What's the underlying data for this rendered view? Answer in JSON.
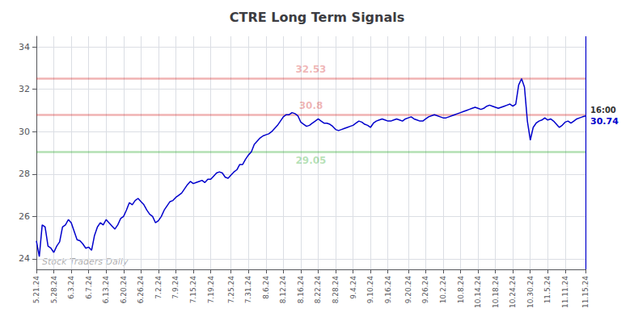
{
  "chart_data": {
    "type": "line",
    "title": "CTRE Long Term Signals",
    "color": "#0000cc",
    "grid": true,
    "ylim": [
      23.5,
      34.5
    ],
    "yticks": [
      24,
      26,
      28,
      30,
      32,
      34
    ],
    "categories": [
      "5.21.24",
      null,
      null,
      null,
      null,
      null,
      "5.28.24",
      null,
      null,
      null,
      null,
      null,
      "6.3.24",
      null,
      null,
      null,
      null,
      null,
      "6.7.24",
      null,
      null,
      null,
      null,
      null,
      "6.13.24",
      null,
      null,
      null,
      null,
      null,
      "6.20.24",
      null,
      null,
      null,
      null,
      null,
      "6.26.24",
      null,
      null,
      null,
      null,
      null,
      "7.2.24",
      null,
      null,
      null,
      null,
      null,
      "7.9.24",
      null,
      null,
      null,
      null,
      null,
      "7.15.24",
      null,
      null,
      null,
      null,
      null,
      "7.19.24",
      null,
      null,
      null,
      null,
      null,
      null,
      "7.25.24",
      null,
      null,
      null,
      null,
      null,
      "7.31.24",
      null,
      null,
      null,
      null,
      null,
      "8.6.24",
      null,
      null,
      null,
      null,
      null,
      "8.12.24",
      null,
      null,
      null,
      null,
      null,
      "8.16.24",
      null,
      null,
      null,
      null,
      null,
      "8.22.24",
      null,
      null,
      null,
      null,
      null,
      "8.28.24",
      null,
      null,
      null,
      null,
      null,
      "9.4.24",
      null,
      null,
      null,
      null,
      null,
      "9.10.24",
      null,
      null,
      null,
      null,
      null,
      "9.16.24",
      null,
      null,
      null,
      null,
      null,
      null,
      "9.20.24",
      null,
      null,
      null,
      null,
      null,
      "9.26.24",
      null,
      null,
      null,
      null,
      null,
      "10.2.24",
      null,
      null,
      null,
      null,
      null,
      "10.8.24",
      null,
      null,
      null,
      null,
      null,
      "10.14.24",
      null,
      null,
      null,
      null,
      null,
      "10.18.24",
      null,
      null,
      null,
      null,
      null,
      "10.24.24",
      null,
      null,
      null,
      null,
      null,
      "10.30.24",
      null,
      null,
      null,
      null,
      null,
      "11.5.24",
      null,
      null,
      null,
      null,
      null,
      "11.11.24",
      null,
      null,
      null,
      null,
      null,
      null,
      "11.15.24"
    ],
    "values": [
      24.85,
      24.1,
      25.6,
      25.5,
      24.6,
      24.5,
      24.3,
      24.6,
      24.8,
      25.5,
      25.6,
      25.85,
      25.7,
      25.3,
      24.9,
      24.85,
      24.7,
      24.5,
      24.55,
      24.4,
      25.1,
      25.5,
      25.7,
      25.6,
      25.85,
      25.7,
      25.55,
      25.4,
      25.6,
      25.9,
      26.0,
      26.3,
      26.65,
      26.55,
      26.75,
      26.85,
      26.7,
      26.55,
      26.3,
      26.1,
      26.0,
      25.7,
      25.8,
      26.0,
      26.3,
      26.5,
      26.7,
      26.75,
      26.9,
      27.0,
      27.1,
      27.3,
      27.5,
      27.65,
      27.55,
      27.6,
      27.65,
      27.7,
      27.6,
      27.75,
      27.75,
      27.9,
      28.05,
      28.1,
      28.05,
      27.85,
      27.8,
      27.95,
      28.1,
      28.2,
      28.45,
      28.45,
      28.7,
      28.9,
      29.05,
      29.4,
      29.55,
      29.7,
      29.8,
      29.85,
      29.9,
      30.0,
      30.15,
      30.3,
      30.5,
      30.7,
      30.8,
      30.8,
      30.9,
      30.85,
      30.75,
      30.45,
      30.35,
      30.25,
      30.3,
      30.4,
      30.5,
      30.6,
      30.5,
      30.4,
      30.4,
      30.35,
      30.25,
      30.1,
      30.05,
      30.1,
      30.15,
      30.2,
      30.25,
      30.3,
      30.4,
      30.5,
      30.45,
      30.35,
      30.3,
      30.2,
      30.4,
      30.5,
      30.55,
      30.6,
      30.55,
      30.5,
      30.5,
      30.55,
      30.6,
      30.55,
      30.5,
      30.6,
      30.65,
      30.7,
      30.6,
      30.55,
      30.5,
      30.5,
      30.6,
      30.7,
      30.75,
      30.8,
      30.75,
      30.7,
      30.65,
      30.65,
      30.7,
      30.75,
      30.8,
      30.85,
      30.9,
      30.95,
      31.0,
      31.05,
      31.1,
      31.15,
      31.1,
      31.05,
      31.1,
      31.2,
      31.25,
      31.2,
      31.15,
      31.1,
      31.15,
      31.2,
      31.25,
      31.3,
      31.2,
      31.3,
      32.2,
      32.5,
      32.1,
      30.5,
      29.6,
      30.2,
      30.4,
      30.5,
      30.55,
      30.65,
      30.55,
      30.6,
      30.5,
      30.35,
      30.2,
      30.3,
      30.45,
      30.5,
      30.4,
      30.5,
      30.6,
      30.65,
      30.7,
      30.74
    ],
    "reference_lines": [
      {
        "value": 32.53,
        "label": "32.53",
        "color": "#cc0000"
      },
      {
        "value": 30.8,
        "label": "30.8",
        "color": "#cc0000"
      },
      {
        "value": 29.05,
        "label": "29.05",
        "color": "#009900"
      }
    ],
    "end_labels": [
      "16:00",
      "30.74"
    ],
    "watermark": "Stock Traders Daily"
  }
}
